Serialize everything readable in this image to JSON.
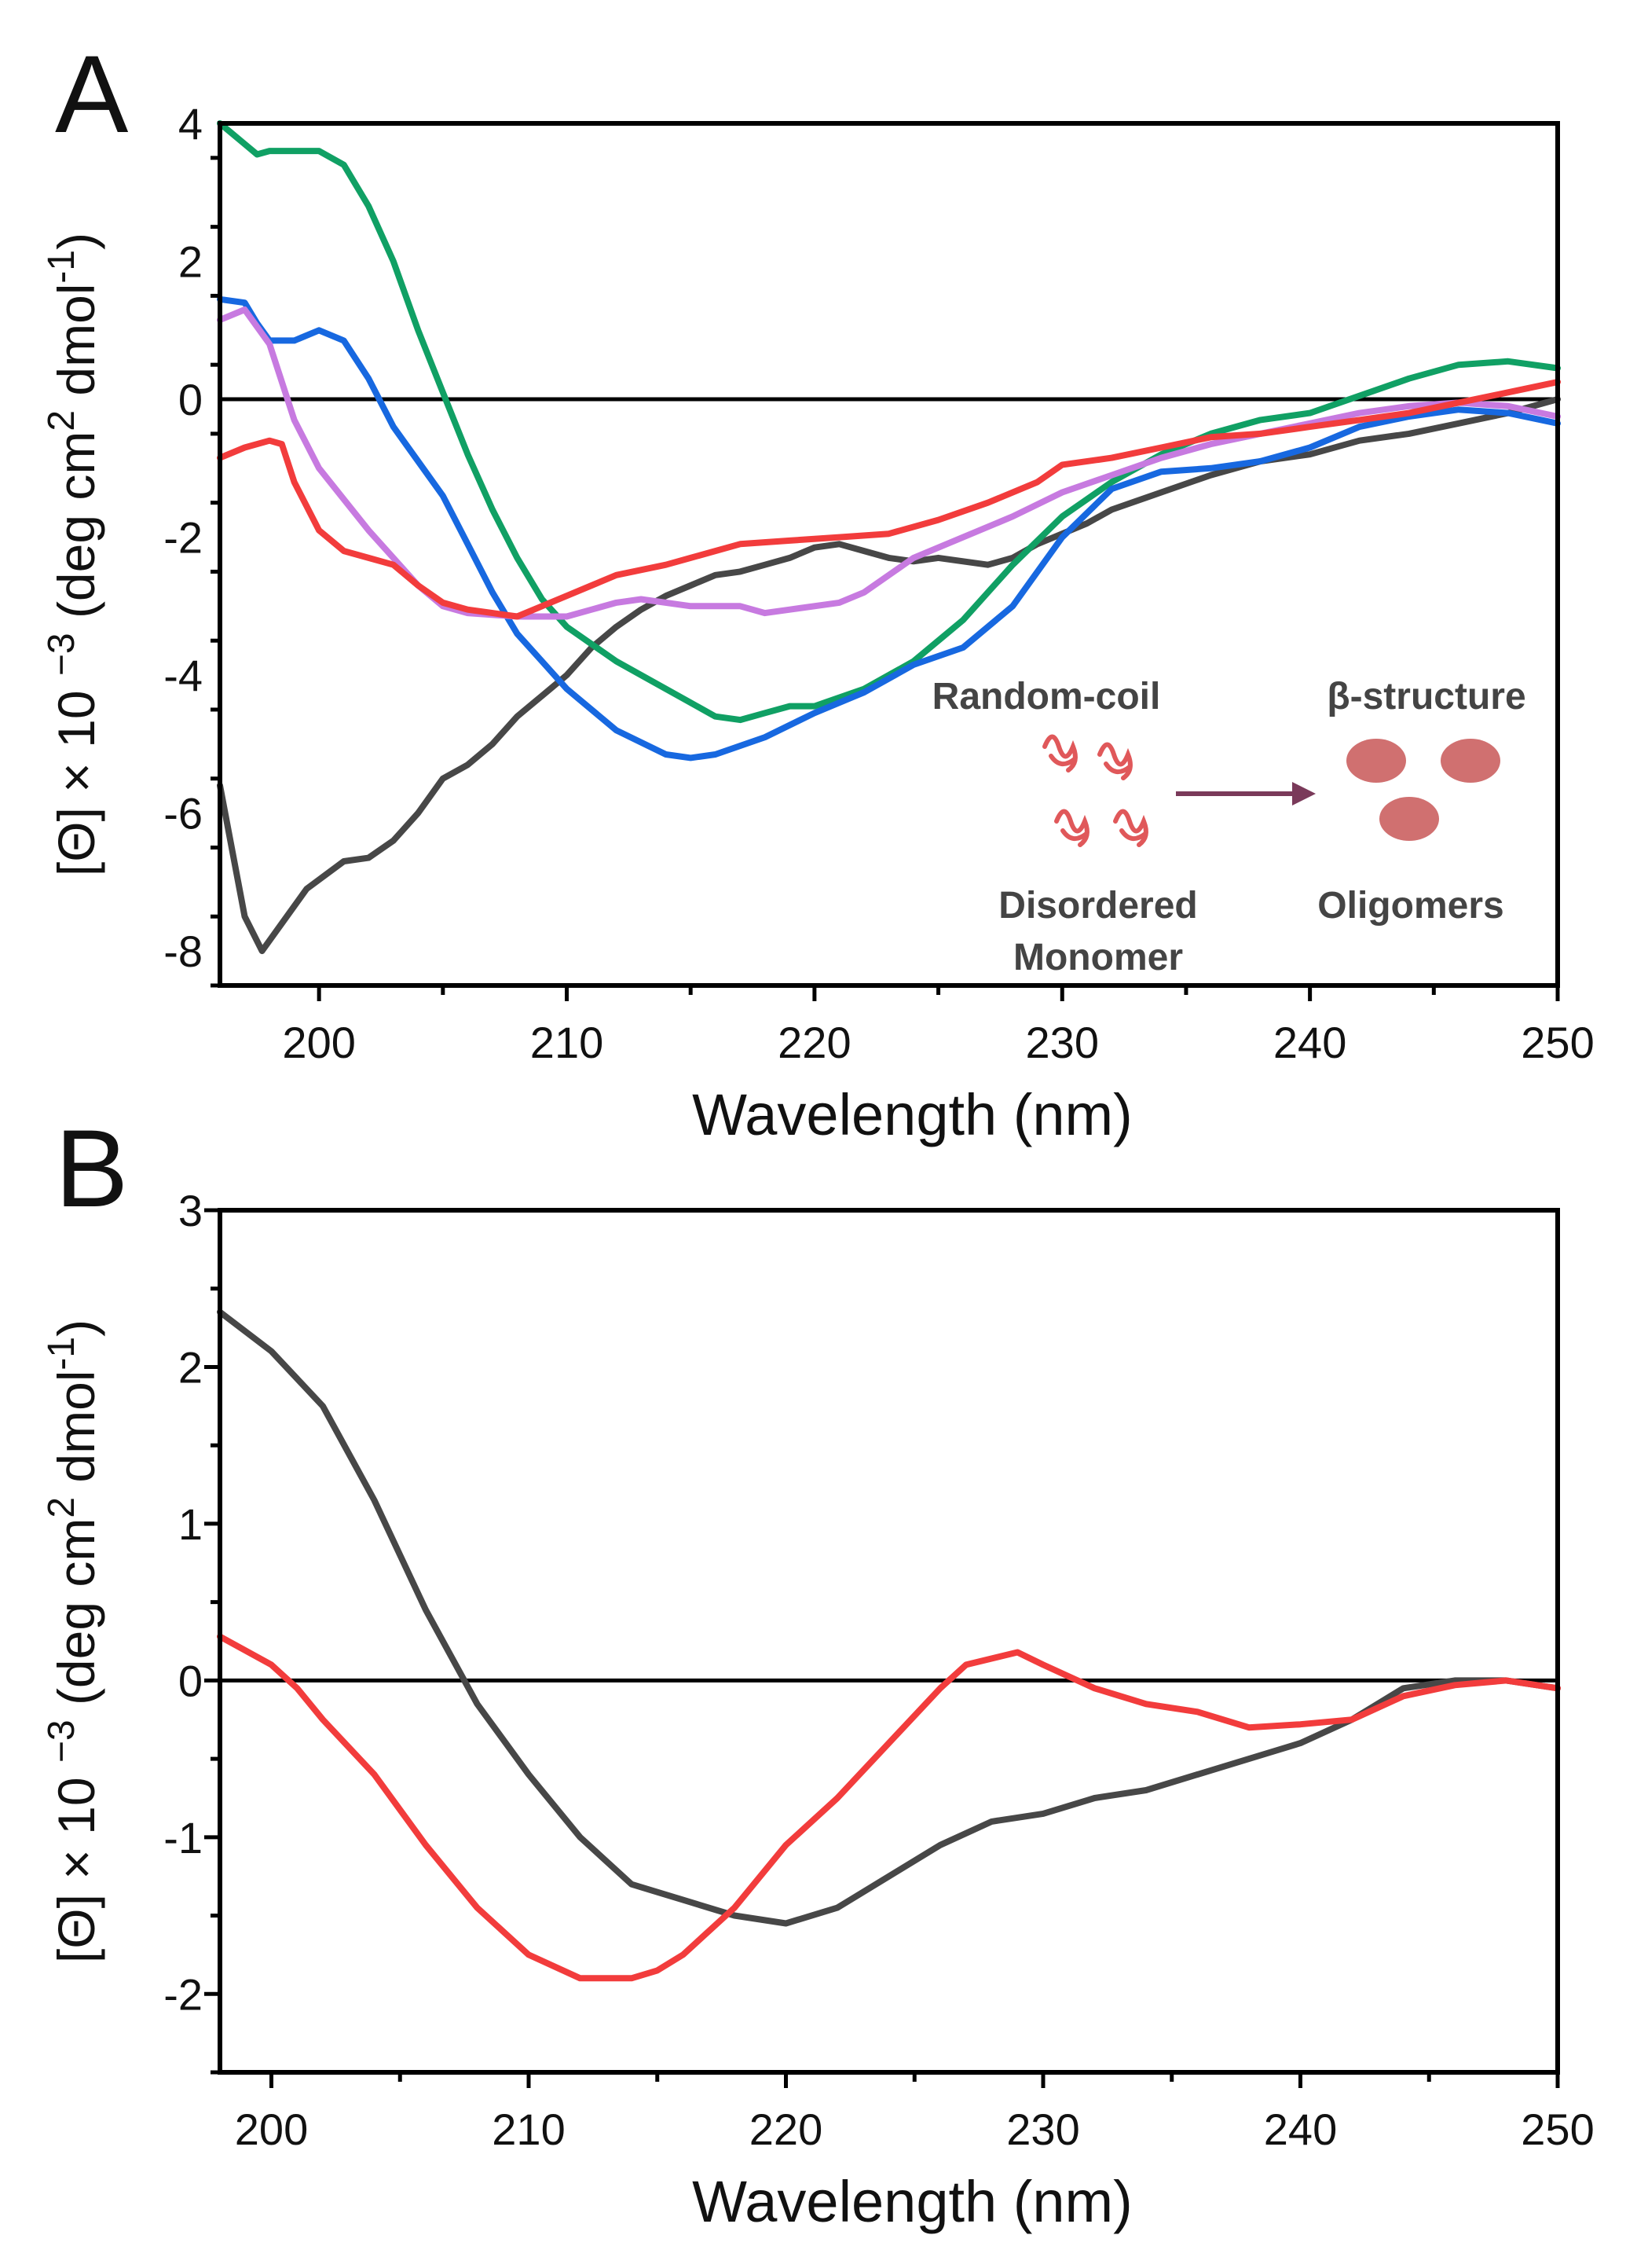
{
  "chart_data": [
    {
      "panel_label": "A",
      "type": "line",
      "xlabel": "Wavelength (nm)",
      "ylabel_parts": {
        "theta": "[Θ]",
        "times": " × 10 ",
        "exp": "−3",
        "units_open": " (deg cm",
        "sq": "2",
        "units_mid": " dmol",
        "inv": "-1",
        "units_close": ")"
      },
      "xlim": [
        196,
        250
      ],
      "ylim": [
        -8.5,
        4
      ],
      "xticks": [
        200,
        210,
        220,
        230,
        240,
        250
      ],
      "yticks": [
        -8,
        -6,
        -4,
        -2,
        0,
        2,
        4
      ],
      "zero_line": true,
      "series": [
        {
          "name": "black",
          "color": "#474747",
          "x": [
            196,
            197,
            197.7,
            198.5,
            199.5,
            201,
            202,
            203,
            204,
            205,
            206,
            207,
            208,
            209,
            210,
            211,
            212,
            213,
            214,
            215,
            216,
            217,
            218,
            219,
            220,
            221,
            222,
            223,
            224,
            225,
            226,
            227,
            228,
            229,
            230,
            231,
            232,
            234,
            236,
            238,
            240,
            242,
            244,
            246,
            248,
            250
          ],
          "y": [
            -5.6,
            -7.5,
            -8,
            -7.6,
            -7.1,
            -6.7,
            -6.65,
            -6.4,
            -6,
            -5.5,
            -5.3,
            -5,
            -4.6,
            -4.3,
            -4,
            -3.6,
            -3.3,
            -3.05,
            -2.85,
            -2.7,
            -2.55,
            -2.5,
            -2.4,
            -2.3,
            -2.15,
            -2.1,
            -2.2,
            -2.3,
            -2.35,
            -2.3,
            -2.35,
            -2.4,
            -2.3,
            -2.1,
            -1.95,
            -1.8,
            -1.6,
            -1.35,
            -1.1,
            -0.9,
            -0.8,
            -0.6,
            -0.5,
            -0.35,
            -0.2,
            0
          ]
        },
        {
          "name": "green",
          "color": "#10a064",
          "x": [
            196,
            197,
            197.5,
            198,
            199,
            200,
            201,
            202,
            203,
            204,
            205,
            206,
            207,
            208,
            209,
            210,
            212,
            214,
            216,
            217,
            218,
            219,
            220,
            222,
            224,
            226,
            228,
            230,
            232,
            234,
            236,
            238,
            240,
            242,
            244,
            246,
            248,
            250
          ],
          "y": [
            4,
            3.7,
            3.55,
            3.6,
            3.6,
            3.6,
            3.4,
            2.8,
            2,
            1,
            0.1,
            -0.8,
            -1.6,
            -2.3,
            -2.9,
            -3.3,
            -3.8,
            -4.2,
            -4.6,
            -4.65,
            -4.55,
            -4.45,
            -4.45,
            -4.2,
            -3.8,
            -3.2,
            -2.4,
            -1.7,
            -1.2,
            -0.8,
            -0.5,
            -0.3,
            -0.2,
            0.05,
            0.3,
            0.5,
            0.55,
            0.45
          ]
        },
        {
          "name": "blue",
          "color": "#1768e0",
          "x": [
            196,
            197,
            197.5,
            198,
            199,
            200,
            201,
            202,
            203,
            204,
            205,
            206,
            207,
            208,
            209,
            210,
            212,
            214,
            215,
            216,
            218,
            220,
            222,
            224,
            226,
            228,
            230,
            232,
            234,
            236,
            238,
            240,
            242,
            244,
            246,
            248,
            250
          ],
          "y": [
            1.45,
            1.4,
            1.1,
            0.85,
            0.85,
            1,
            0.85,
            0.3,
            -0.4,
            -0.9,
            -1.4,
            -2.1,
            -2.8,
            -3.4,
            -3.8,
            -4.2,
            -4.8,
            -5.15,
            -5.2,
            -5.15,
            -4.9,
            -4.55,
            -4.25,
            -3.85,
            -3.6,
            -3,
            -2,
            -1.3,
            -1.05,
            -1,
            -0.9,
            -0.7,
            -0.4,
            -0.25,
            -0.15,
            -0.2,
            -0.35
          ]
        },
        {
          "name": "purple",
          "color": "#c77ae0",
          "x": [
            196,
            197,
            198,
            199,
            200,
            202,
            204,
            205,
            206,
            208,
            210,
            211,
            212,
            213,
            215,
            217,
            218,
            219,
            221,
            222,
            224,
            226,
            228,
            230,
            232,
            234,
            236,
            238,
            240,
            242,
            244,
            246,
            248,
            250
          ],
          "y": [
            1.15,
            1.3,
            0.8,
            -0.3,
            -1,
            -1.9,
            -2.7,
            -3,
            -3.1,
            -3.15,
            -3.15,
            -3.05,
            -2.95,
            -2.9,
            -3,
            -3,
            -3.1,
            -3.05,
            -2.95,
            -2.8,
            -2.3,
            -2,
            -1.7,
            -1.35,
            -1.1,
            -0.85,
            -0.65,
            -0.5,
            -0.35,
            -0.2,
            -0.1,
            -0.05,
            -0.1,
            -0.25
          ]
        },
        {
          "name": "red",
          "color": "#f23c3c",
          "x": [
            196,
            197,
            198,
            198.5,
            199,
            200,
            201,
            202,
            203,
            204,
            205,
            206,
            207,
            208,
            209,
            210,
            211,
            212,
            214,
            215,
            216,
            217,
            219,
            221,
            223,
            225,
            227,
            229,
            230,
            232,
            234,
            236,
            238,
            240,
            242,
            244,
            246,
            248,
            250
          ],
          "y": [
            -0.85,
            -0.7,
            -0.6,
            -0.65,
            -1.2,
            -1.9,
            -2.2,
            -2.3,
            -2.4,
            -2.7,
            -2.95,
            -3.05,
            -3.1,
            -3.15,
            -3,
            -2.85,
            -2.7,
            -2.55,
            -2.4,
            -2.3,
            -2.2,
            -2.1,
            -2.05,
            -2,
            -1.95,
            -1.75,
            -1.5,
            -1.2,
            -0.95,
            -0.85,
            -0.7,
            -0.55,
            -0.5,
            -0.4,
            -0.3,
            -0.2,
            -0.05,
            0.1,
            0.25
          ]
        }
      ],
      "inset": {
        "left_title": "Random-coil",
        "right_title": "β-structure",
        "left_caption_1": "Disordered",
        "left_caption_2": "Monomer",
        "right_caption": "Oligomers",
        "squiggle_color": "#e0585a",
        "oligomer_color": "#d07070",
        "arrow_color": "#7a3a5a"
      }
    },
    {
      "panel_label": "B",
      "type": "line",
      "xlabel": "Wavelength (nm)",
      "ylabel_parts": {
        "theta": "[Θ]",
        "times": " × 10 ",
        "exp": "−3",
        "units_open": " (deg cm",
        "sq": "2",
        "units_mid": " dmol",
        "inv": "-1",
        "units_close": ")"
      },
      "xlim": [
        198,
        250
      ],
      "ylim": [
        -2.5,
        3
      ],
      "xticks": [
        200,
        210,
        220,
        230,
        240,
        250
      ],
      "yticks": [
        -2,
        -1,
        0,
        1,
        2,
        3
      ],
      "zero_line": true,
      "series": [
        {
          "name": "black",
          "color": "#474747",
          "x": [
            198,
            200,
            202,
            204,
            206,
            208,
            210,
            212,
            214,
            216,
            218,
            220,
            222,
            224,
            226,
            228,
            230,
            232,
            234,
            236,
            238,
            240,
            242,
            244,
            246,
            248,
            250
          ],
          "y": [
            2.35,
            2.1,
            1.75,
            1.15,
            0.45,
            -0.15,
            -0.6,
            -1,
            -1.3,
            -1.4,
            -1.5,
            -1.55,
            -1.45,
            -1.25,
            -1.05,
            -0.9,
            -0.85,
            -0.75,
            -0.7,
            -0.6,
            -0.5,
            -0.4,
            -0.25,
            -0.05,
            0,
            0,
            -0.05
          ]
        },
        {
          "name": "red",
          "color": "#f23c3c",
          "x": [
            198,
            200,
            201,
            202,
            204,
            206,
            208,
            210,
            212,
            214,
            215,
            216,
            218,
            220,
            222,
            224,
            226,
            227,
            229,
            230,
            232,
            234,
            236,
            238,
            240,
            242,
            244,
            246,
            248,
            250
          ],
          "y": [
            0.28,
            0.1,
            -0.05,
            -0.25,
            -0.6,
            -1.05,
            -1.45,
            -1.75,
            -1.9,
            -1.9,
            -1.85,
            -1.75,
            -1.45,
            -1.05,
            -0.75,
            -0.4,
            -0.05,
            0.1,
            0.18,
            0.1,
            -0.05,
            -0.15,
            -0.2,
            -0.3,
            -0.28,
            -0.25,
            -0.1,
            -0.03,
            0,
            -0.05
          ]
        }
      ]
    }
  ]
}
